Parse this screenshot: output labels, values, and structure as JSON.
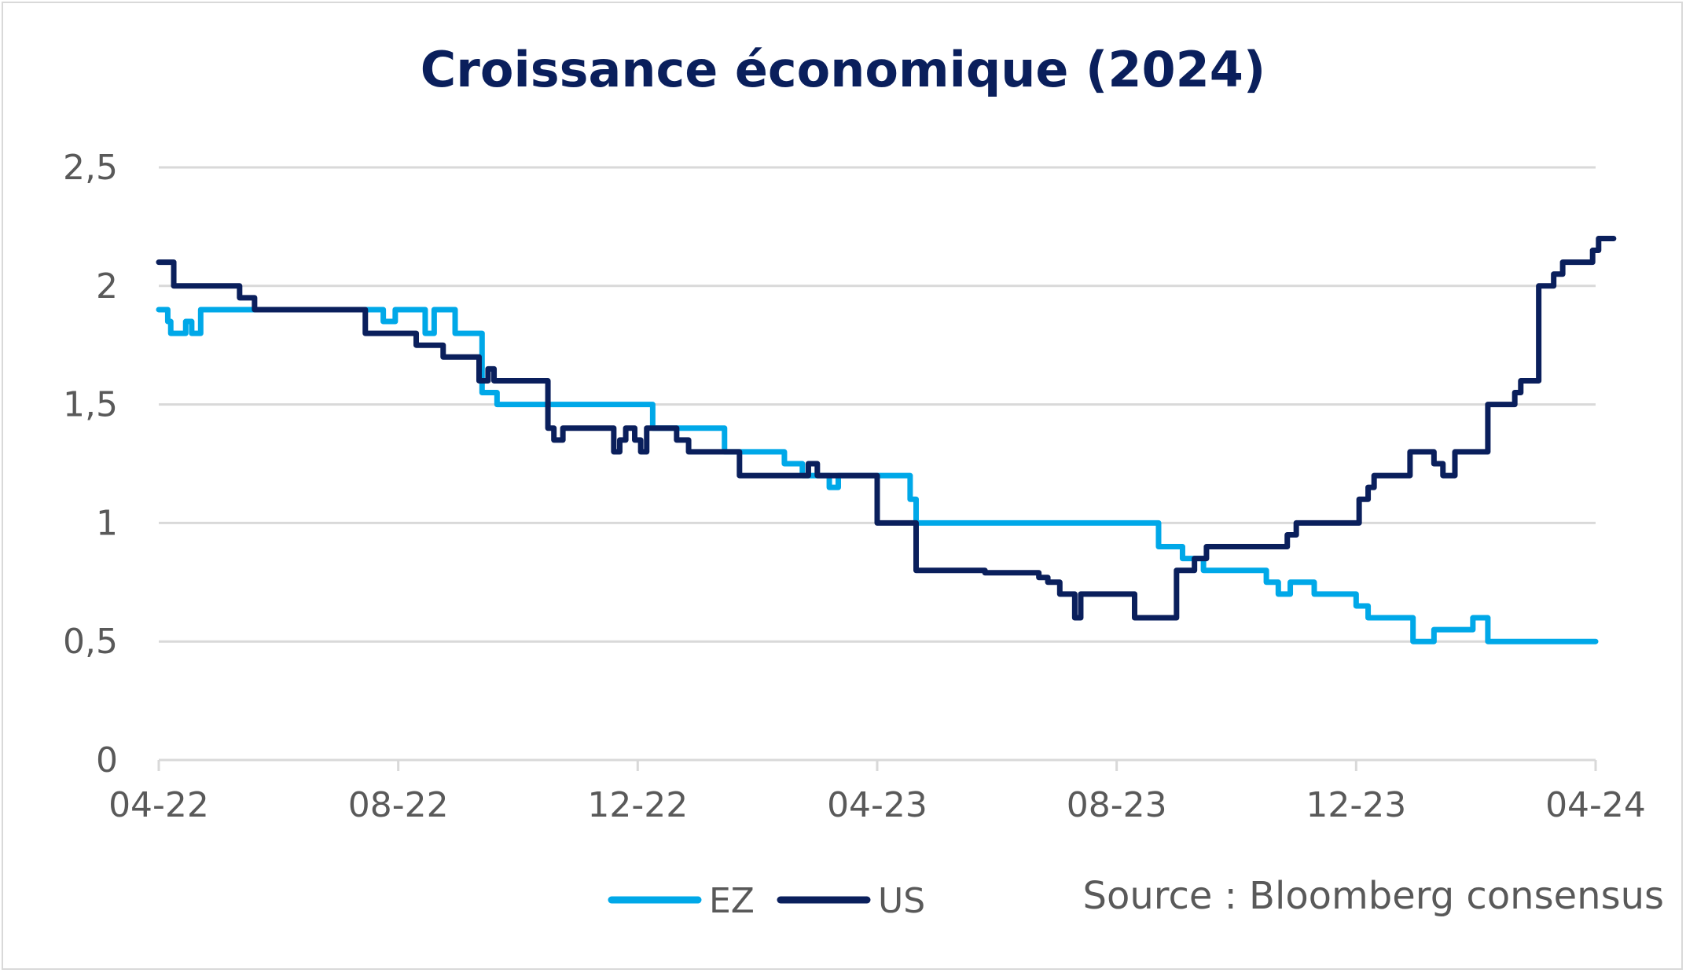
{
  "colors": {
    "ez": "#00a8e8",
    "us": "#0a1f5c",
    "grid": "#d9d9d9",
    "title": "#0a1f5c",
    "text": "#595959"
  },
  "footer": {
    "source": "Source : Bloomberg consensus"
  },
  "chart_data": {
    "type": "line",
    "title": "Croissance économique (2024)",
    "xlabel": "",
    "ylabel": "",
    "ylim": [
      0,
      2.5
    ],
    "yticks": [
      "0",
      "0,5",
      "1",
      "1,5",
      "2",
      "2,5"
    ],
    "xticks": [
      "04-22",
      "08-22",
      "12-22",
      "04-23",
      "08-23",
      "12-23",
      "04-24"
    ],
    "xlim": [
      "04-22",
      "04-24"
    ],
    "grid": true,
    "legend": "bottom",
    "step": true,
    "series": [
      {
        "name": "EZ",
        "color": "#00a8e8",
        "points": [
          [
            0,
            1.9
          ],
          [
            0.1,
            1.9
          ],
          [
            0.15,
            1.85
          ],
          [
            0.2,
            1.8
          ],
          [
            0.35,
            1.8
          ],
          [
            0.45,
            1.85
          ],
          [
            0.55,
            1.8
          ],
          [
            0.7,
            1.9
          ],
          [
            3.55,
            1.9
          ],
          [
            3.75,
            1.85
          ],
          [
            3.95,
            1.9
          ],
          [
            4.45,
            1.8
          ],
          [
            4.6,
            1.9
          ],
          [
            4.95,
            1.8
          ],
          [
            5.4,
            1.55
          ],
          [
            5.65,
            1.5
          ],
          [
            8.25,
            1.4
          ],
          [
            9.45,
            1.3
          ],
          [
            10.45,
            1.25
          ],
          [
            10.75,
            1.2
          ],
          [
            11.2,
            1.15
          ],
          [
            11.35,
            1.2
          ],
          [
            12.55,
            1.1
          ],
          [
            12.65,
            1.0
          ],
          [
            16.7,
            0.9
          ],
          [
            17.1,
            0.85
          ],
          [
            17.45,
            0.8
          ],
          [
            18.5,
            0.75
          ],
          [
            18.7,
            0.7
          ],
          [
            18.9,
            0.75
          ],
          [
            19.3,
            0.7
          ],
          [
            20.0,
            0.65
          ],
          [
            20.2,
            0.6
          ],
          [
            20.95,
            0.5
          ],
          [
            21.3,
            0.55
          ],
          [
            21.95,
            0.6
          ],
          [
            22.2,
            0.5
          ],
          [
            24.0,
            0.5
          ]
        ]
      },
      {
        "name": "US",
        "color": "#0a1f5c",
        "points": [
          [
            0,
            2.1
          ],
          [
            0.25,
            2.0
          ],
          [
            1.35,
            1.95
          ],
          [
            1.6,
            1.9
          ],
          [
            3.45,
            1.8
          ],
          [
            4.3,
            1.75
          ],
          [
            4.75,
            1.7
          ],
          [
            5.35,
            1.6
          ],
          [
            5.5,
            1.65
          ],
          [
            5.6,
            1.6
          ],
          [
            6.5,
            1.4
          ],
          [
            6.6,
            1.35
          ],
          [
            6.75,
            1.4
          ],
          [
            7.6,
            1.3
          ],
          [
            7.7,
            1.35
          ],
          [
            7.8,
            1.4
          ],
          [
            7.95,
            1.35
          ],
          [
            8.05,
            1.3
          ],
          [
            8.15,
            1.4
          ],
          [
            8.65,
            1.35
          ],
          [
            8.85,
            1.3
          ],
          [
            9.7,
            1.2
          ],
          [
            10.85,
            1.25
          ],
          [
            11.0,
            1.2
          ],
          [
            12.0,
            1.0
          ],
          [
            12.65,
            0.8
          ],
          [
            13.8,
            0.79
          ],
          [
            14.05,
            0.79
          ],
          [
            14.25,
            0.79
          ],
          [
            14.7,
            0.77
          ],
          [
            14.85,
            0.75
          ],
          [
            15.05,
            0.7
          ],
          [
            15.3,
            0.6
          ],
          [
            15.4,
            0.7
          ],
          [
            16.05,
            0.7
          ],
          [
            16.3,
            0.6
          ],
          [
            17.0,
            0.8
          ],
          [
            17.3,
            0.85
          ],
          [
            17.5,
            0.9
          ],
          [
            18.85,
            0.95
          ],
          [
            19.0,
            1.0
          ],
          [
            20.05,
            1.1
          ],
          [
            20.2,
            1.15
          ],
          [
            20.3,
            1.2
          ],
          [
            20.9,
            1.3
          ],
          [
            21.3,
            1.25
          ],
          [
            21.45,
            1.2
          ],
          [
            21.65,
            1.3
          ],
          [
            22.2,
            1.5
          ],
          [
            22.65,
            1.55
          ],
          [
            22.75,
            1.6
          ],
          [
            23.05,
            2.0
          ],
          [
            23.3,
            2.05
          ],
          [
            23.45,
            2.1
          ],
          [
            23.95,
            2.15
          ],
          [
            24.05,
            2.2
          ],
          [
            24.3,
            2.2
          ]
        ]
      }
    ]
  }
}
